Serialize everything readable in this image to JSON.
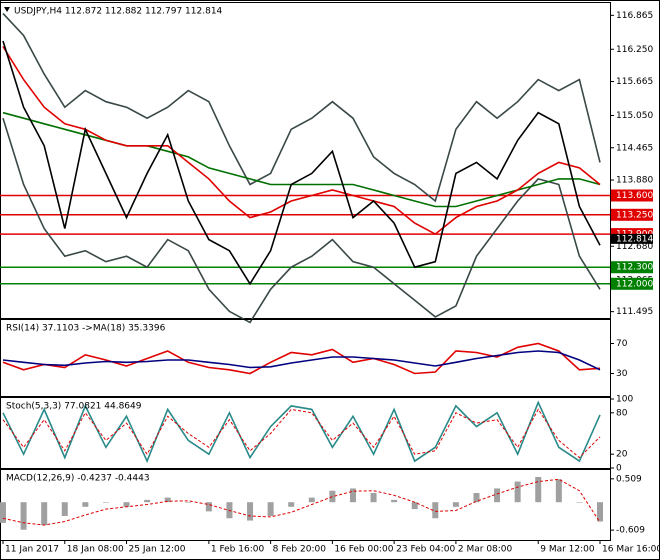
{
  "chart_data": [
    {
      "type": "line",
      "title": "USDJPY,H4  112.872 112.882 112.797 112.814",
      "ylim": [
        111.38,
        117.07
      ],
      "yticks": [
        116.865,
        {
          "value": 116.25,
          "label": "116.250"
        },
        115.665,
        {
          "value": 115.05,
          "label": "115.050"
        },
        114.465,
        {
          "value": 113.88,
          "label": "113.880"
        },
        113.265,
        {
          "value": 112.68,
          "label": "112.680"
        },
        112.065,
        111.495
      ],
      "levels": [
        {
          "value": 113.6,
          "label": "113.600",
          "color": "#e00000"
        },
        {
          "value": 113.25,
          "label": "113.250",
          "color": "#e00000"
        },
        {
          "value": 112.9,
          "label": "112.900",
          "color": "#e00000"
        },
        {
          "value": 112.3,
          "label": "112.300",
          "color": "#008000"
        },
        {
          "value": 112.0,
          "label": "112.000",
          "color": "#008000"
        }
      ],
      "last": 112.814,
      "series": [
        {
          "color": "#3a4848",
          "style": "line",
          "values": [
            116.9,
            116.5,
            115.8,
            115.2,
            115.5,
            115.3,
            115.2,
            115.0,
            115.2,
            115.5,
            115.3,
            114.5,
            113.8,
            114.0,
            114.8,
            115.0,
            115.3,
            115.0,
            114.3,
            114.0,
            113.8,
            113.5,
            114.8,
            115.3,
            115.0,
            115.3,
            115.7,
            115.5,
            115.7,
            114.2
          ]
        },
        {
          "color": "#3a4848",
          "style": "line",
          "values": [
            115.0,
            113.8,
            113.0,
            112.5,
            112.6,
            112.4,
            112.5,
            112.3,
            112.8,
            112.6,
            111.9,
            111.5,
            111.3,
            111.9,
            112.3,
            112.5,
            112.8,
            112.4,
            112.3,
            112.0,
            111.7,
            111.4,
            111.6,
            112.5,
            113.0,
            113.5,
            113.9,
            113.8,
            112.5,
            111.9
          ]
        },
        {
          "color": "#007000",
          "style": "line",
          "values": [
            115.1,
            115.0,
            114.9,
            114.8,
            114.7,
            114.6,
            114.5,
            114.5,
            114.4,
            114.3,
            114.1,
            114.0,
            113.9,
            113.8,
            113.8,
            113.8,
            113.8,
            113.8,
            113.7,
            113.6,
            113.5,
            113.4,
            113.4,
            113.5,
            113.6,
            113.7,
            113.8,
            113.9,
            113.9,
            113.8
          ]
        },
        {
          "color": "#e00000",
          "style": "line",
          "values": [
            116.3,
            115.7,
            115.2,
            114.9,
            114.8,
            114.6,
            114.5,
            114.5,
            114.5,
            114.2,
            113.9,
            113.5,
            113.2,
            113.3,
            113.5,
            113.6,
            113.7,
            113.6,
            113.5,
            113.4,
            113.1,
            112.9,
            113.2,
            113.4,
            113.5,
            113.7,
            114.0,
            114.2,
            114.1,
            113.8
          ]
        },
        {
          "color": "#000000",
          "style": "line",
          "values": [
            116.4,
            115.2,
            114.5,
            113.0,
            114.8,
            114.0,
            113.2,
            114.0,
            114.7,
            113.5,
            112.8,
            112.6,
            112.0,
            112.6,
            113.8,
            114.0,
            114.4,
            113.2,
            113.5,
            113.1,
            112.3,
            112.4,
            114.0,
            114.2,
            113.9,
            114.6,
            115.1,
            114.9,
            113.4,
            112.7
          ]
        }
      ]
    },
    {
      "type": "line",
      "title": "RSI(14) 37.1103 ->MA(18) 35.3396",
      "ylim": [
        0,
        100
      ],
      "yticks": [
        70,
        30
      ],
      "series": [
        {
          "color": "#e00000",
          "style": "line",
          "values": [
            45,
            35,
            42,
            38,
            55,
            48,
            40,
            50,
            60,
            45,
            38,
            35,
            30,
            45,
            58,
            55,
            62,
            45,
            50,
            42,
            30,
            32,
            60,
            58,
            52,
            65,
            70,
            60,
            35,
            37
          ]
        },
        {
          "color": "#000080",
          "style": "line",
          "values": [
            48,
            45,
            42,
            41,
            44,
            46,
            45,
            46,
            48,
            48,
            45,
            42,
            38,
            39,
            44,
            48,
            52,
            52,
            50,
            48,
            44,
            40,
            45,
            50,
            54,
            58,
            60,
            58,
            48,
            35
          ]
        }
      ]
    },
    {
      "type": "line",
      "title": "Stoch(5,3,3) 77.0821 44.8649",
      "ylim": [
        0,
        100
      ],
      "yticks": [
        100,
        80,
        20,
        0
      ],
      "series": [
        {
          "color": "#2a8a8a",
          "style": "line",
          "values": [
            80,
            20,
            85,
            15,
            90,
            30,
            75,
            10,
            85,
            40,
            20,
            80,
            15,
            60,
            90,
            85,
            30,
            75,
            20,
            85,
            10,
            30,
            90,
            60,
            80,
            20,
            95,
            30,
            10,
            77
          ]
        },
        {
          "color": "#e00000",
          "style": "dashed",
          "values": [
            70,
            30,
            70,
            25,
            80,
            40,
            65,
            20,
            75,
            50,
            30,
            70,
            25,
            50,
            85,
            80,
            40,
            65,
            30,
            75,
            20,
            25,
            80,
            65,
            70,
            30,
            85,
            40,
            15,
            45
          ]
        }
      ]
    },
    {
      "type": "bar",
      "title": "MACD(12,26,9) -0.4237 -0.4443",
      "ylim": [
        -0.824,
        0.68
      ],
      "yticks": [
        0.509,
        -0.609
      ],
      "categories": [
        "11 Jan 2017",
        null,
        null,
        "18 Jan 08:00",
        null,
        null,
        "25 Jan 12:00",
        null,
        null,
        null,
        "1 Feb 16:00",
        null,
        null,
        "8 Feb 20:00",
        null,
        null,
        "16 Feb 00:00",
        null,
        null,
        "23 Feb 04:00",
        null,
        null,
        "2 Mar 08:00",
        null,
        null,
        null,
        "9 Mar 12:00",
        null,
        null,
        "16 Mar 16:00"
      ],
      "series": [
        {
          "color": "#a0a0a0",
          "style": "histogram",
          "values": [
            -0.45,
            -0.6,
            -0.5,
            -0.3,
            -0.1,
            0,
            -0.1,
            0.05,
            0.1,
            0,
            -0.2,
            -0.35,
            -0.4,
            -0.3,
            -0.1,
            0.1,
            0.25,
            0.3,
            0.2,
            0.05,
            -0.15,
            -0.35,
            -0.1,
            0.2,
            0.3,
            0.45,
            0.55,
            0.5,
            0.0,
            -0.42
          ]
        },
        {
          "color": "#e00000",
          "style": "dashed",
          "values": [
            -0.35,
            -0.45,
            -0.5,
            -0.42,
            -0.28,
            -0.15,
            -0.1,
            -0.05,
            0.02,
            0.03,
            -0.05,
            -0.18,
            -0.3,
            -0.32,
            -0.22,
            -0.05,
            0.12,
            0.24,
            0.25,
            0.15,
            0.0,
            -0.2,
            -0.18,
            0.02,
            0.18,
            0.33,
            0.45,
            0.5,
            0.25,
            -0.44
          ]
        }
      ]
    }
  ]
}
